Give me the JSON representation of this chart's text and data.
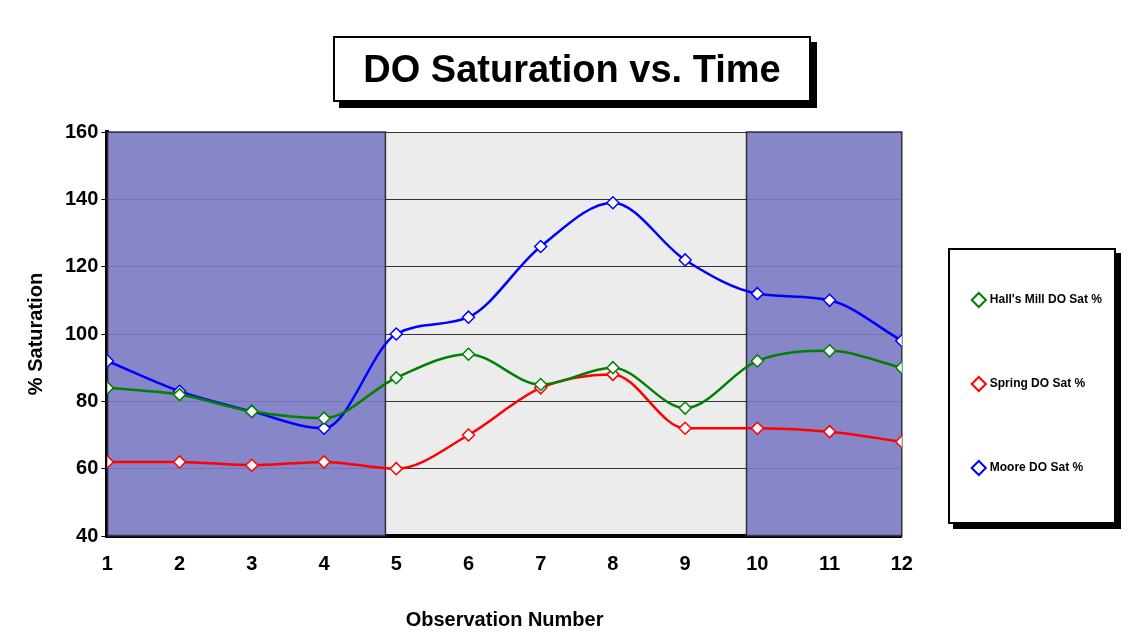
{
  "chart_data": {
    "type": "line",
    "title": "DO Saturation vs. Time",
    "xlabel": "Observation Number",
    "ylabel": "% Saturation",
    "x": [
      1,
      2,
      3,
      4,
      5,
      6,
      7,
      8,
      9,
      10,
      11,
      12
    ],
    "xlim": [
      1,
      12
    ],
    "xticks": [
      1,
      2,
      3,
      4,
      5,
      6,
      7,
      8,
      9,
      10,
      11,
      12
    ],
    "ylim": [
      40,
      160
    ],
    "yticks": [
      40,
      60,
      80,
      100,
      120,
      140,
      160
    ],
    "series": [
      {
        "name": "Hall's Mill DO Sat %",
        "color": "#008000",
        "values": [
          84,
          82,
          77,
          75,
          87,
          94,
          85,
          90,
          78,
          92,
          95,
          90
        ]
      },
      {
        "name": "Spring DO Sat %",
        "color": "#ff0000",
        "values": [
          62,
          62,
          61,
          62,
          60,
          70,
          84,
          88,
          72,
          72,
          71,
          68
        ]
      },
      {
        "name": "Moore DO Sat %",
        "color": "#0000ff",
        "values": [
          92,
          83,
          77,
          72,
          100,
          105,
          126,
          139,
          122,
          112,
          110,
          98
        ]
      }
    ],
    "bands": [
      {
        "axis": "x",
        "from": 1,
        "to": 4.85,
        "color": "#7b7bc4"
      },
      {
        "axis": "x",
        "from": 9.85,
        "to": 12,
        "color": "#7b7bc4"
      }
    ],
    "grid": "y",
    "legend": "right",
    "marker": "diamond",
    "line_style": "solid"
  }
}
